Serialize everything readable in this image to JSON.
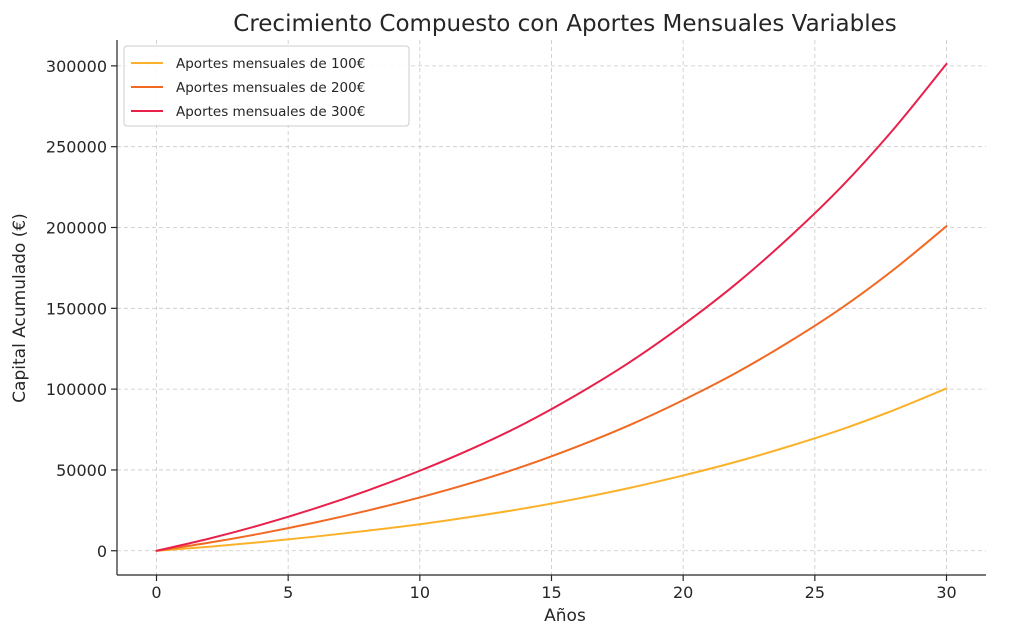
{
  "chart_data": {
    "type": "line",
    "title": "Crecimiento Compuesto con Aportes Mensuales Variables",
    "xlabel": "Años",
    "ylabel": "Capital Acumulado (€)",
    "xlim": [
      -1.5,
      31.5
    ],
    "ylim": [
      -15000,
      316000
    ],
    "xticks": [
      0,
      5,
      10,
      15,
      20,
      25,
      30
    ],
    "yticks": [
      0,
      50000,
      100000,
      150000,
      200000,
      250000,
      300000
    ],
    "grid": true,
    "legend_position": "top-left",
    "x": [
      0,
      2,
      4,
      6,
      8,
      10,
      12,
      14,
      16,
      18,
      20,
      22,
      24,
      26,
      28,
      30
    ],
    "series": [
      {
        "name": "Aportes mensuales de 100€",
        "color": "#fbb22a",
        "values": [
          0,
          2500,
          5400,
          8700,
          12400,
          16400,
          21100,
          26300,
          32300,
          39000,
          46600,
          55000,
          64500,
          75000,
          87000,
          100400
        ]
      },
      {
        "name": "Aportes mensuales de 200€",
        "color": "#f16922",
        "values": [
          0,
          5000,
          10800,
          17400,
          24800,
          33000,
          42200,
          52600,
          64600,
          78000,
          93200,
          110000,
          129000,
          150000,
          174000,
          200800
        ]
      },
      {
        "name": "Aportes mensuales de 300€",
        "color": "#e8204a",
        "values": [
          0,
          7500,
          16200,
          26100,
          37200,
          49500,
          63300,
          78900,
          96900,
          117000,
          139800,
          165000,
          193500,
          225000,
          261000,
          301200
        ]
      }
    ]
  }
}
